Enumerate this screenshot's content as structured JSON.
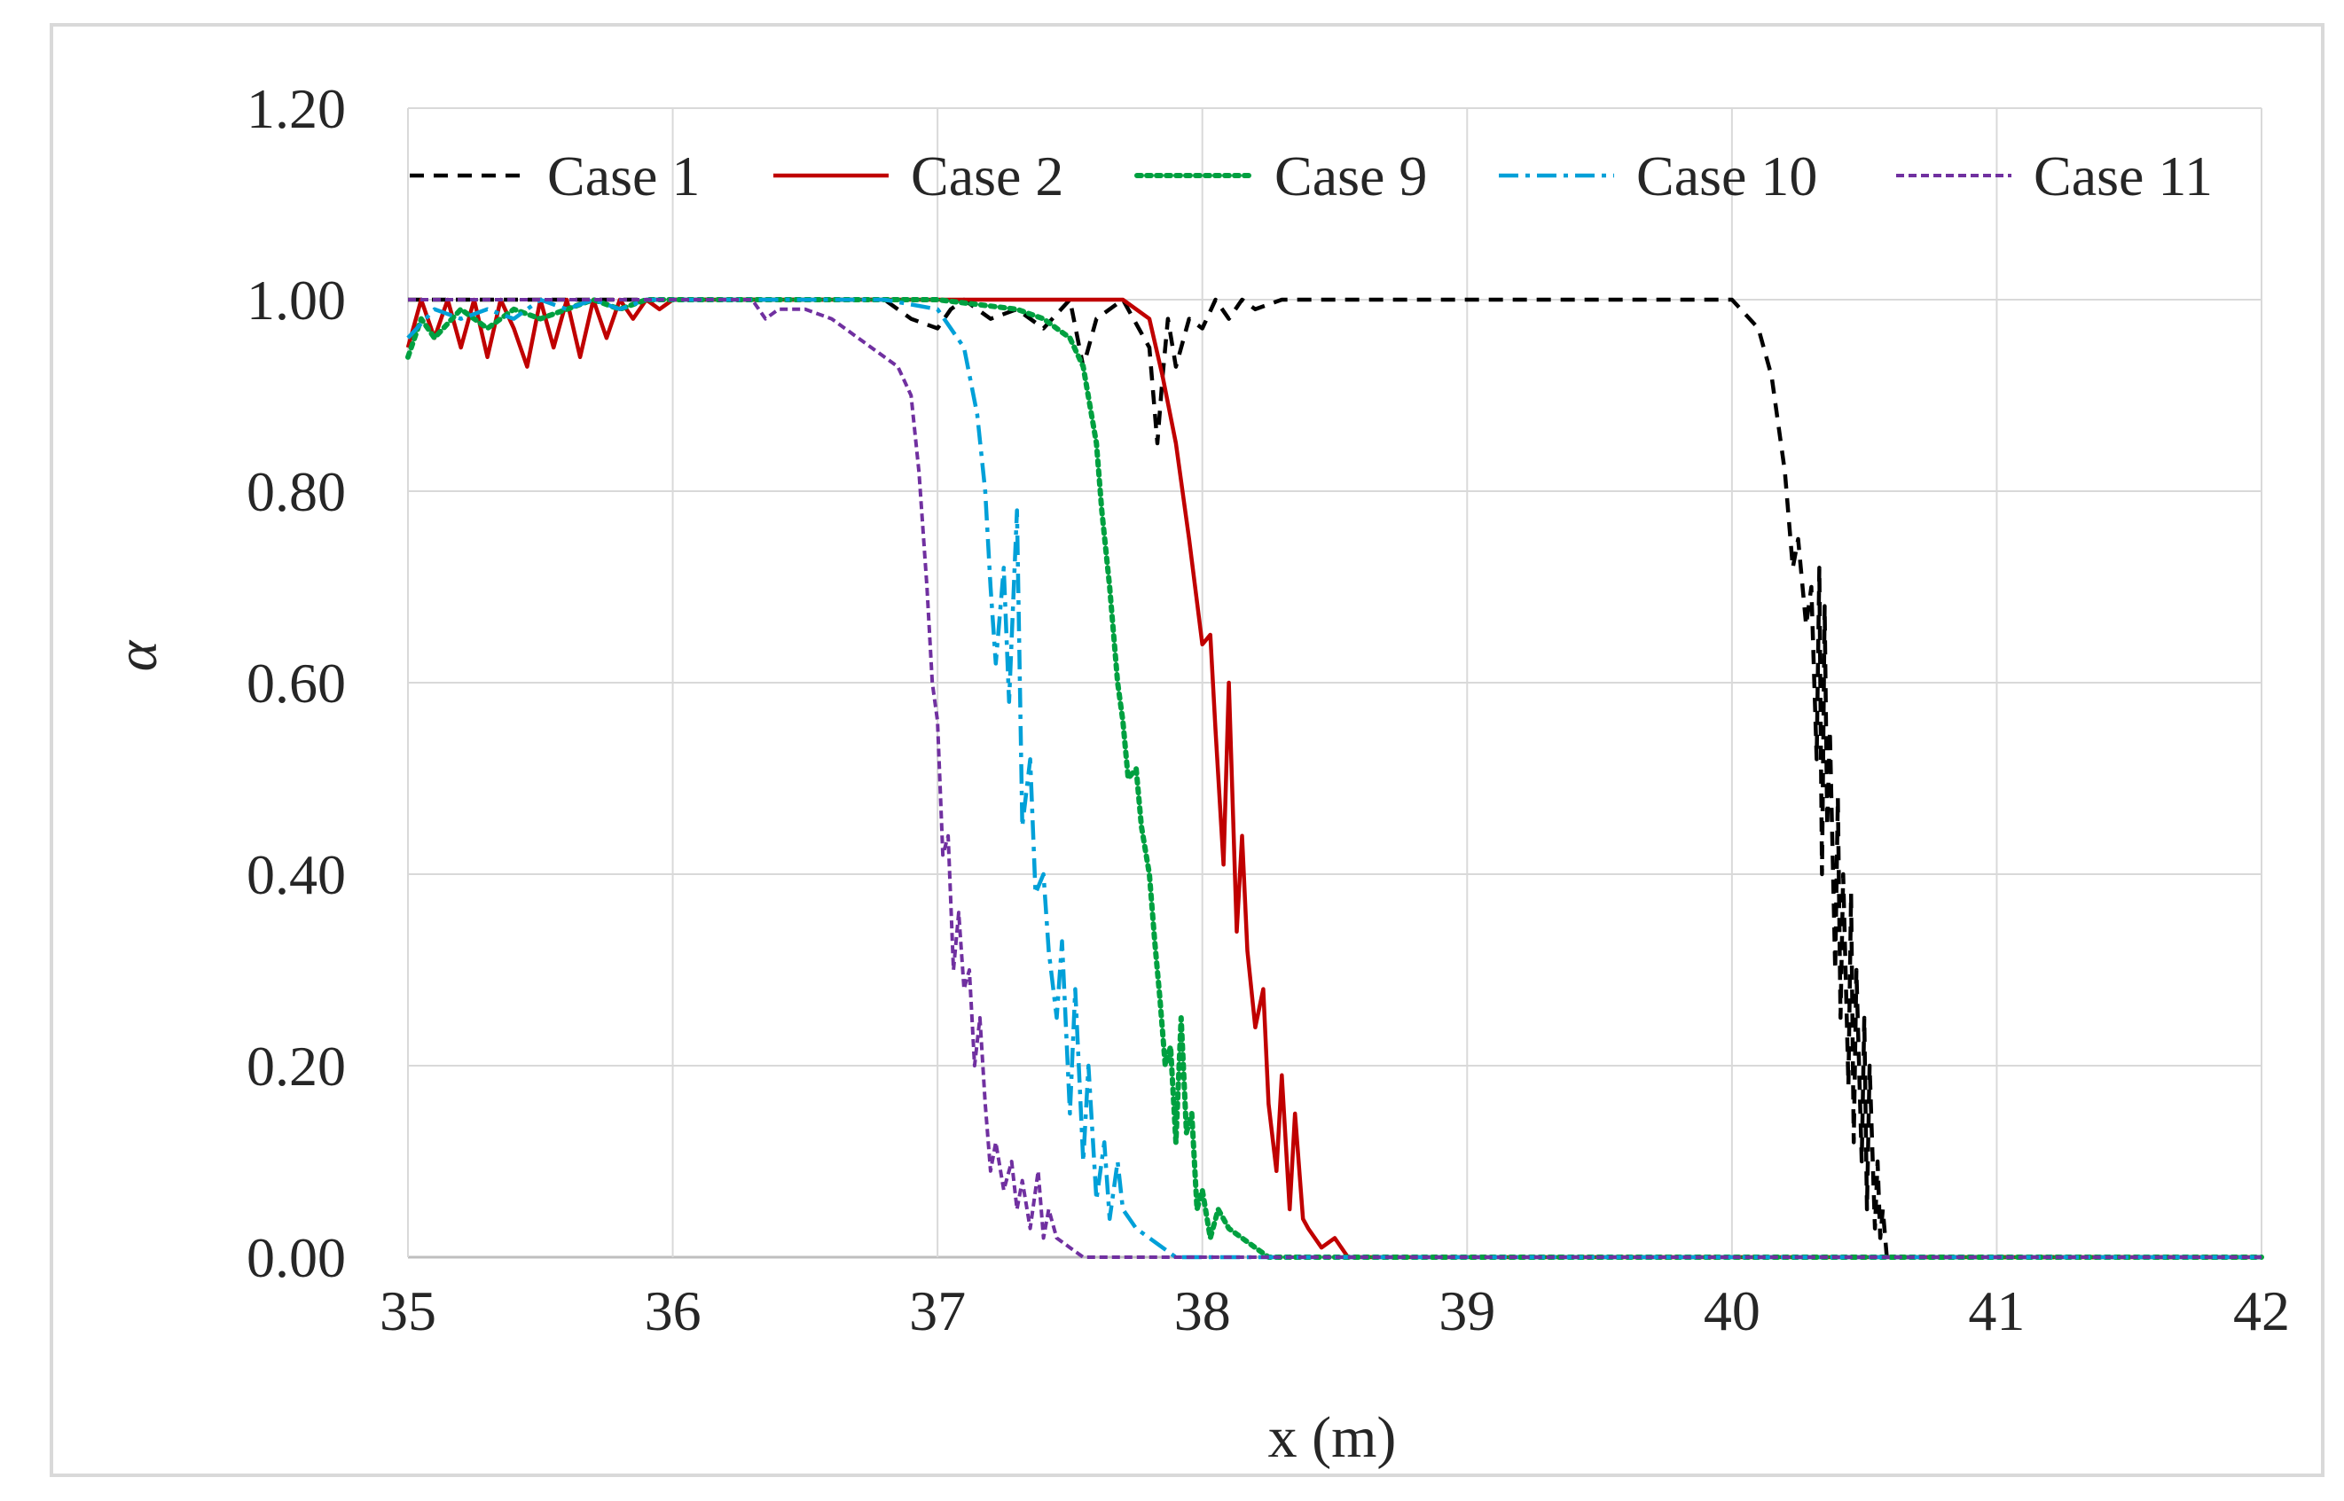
{
  "chart_data": {
    "type": "line",
    "title": "",
    "xlabel": "x (m)",
    "ylabel": "α",
    "xlim": [
      35,
      42
    ],
    "ylim": [
      0,
      1.2
    ],
    "xticks": [
      "35",
      "36",
      "37",
      "38",
      "39",
      "40",
      "41",
      "42"
    ],
    "yticks": [
      "0.00",
      "0.20",
      "0.40",
      "0.60",
      "0.80",
      "1.00",
      "1.20"
    ],
    "grid": true,
    "legend_position": "top",
    "series": [
      {
        "name": "Case 1",
        "color": "#000000",
        "style": "dashed",
        "x": [
          35.0,
          36.0,
          36.8,
          36.9,
          37.0,
          37.05,
          37.1,
          37.2,
          37.3,
          37.4,
          37.5,
          37.55,
          37.6,
          37.7,
          37.8,
          37.83,
          37.85,
          37.87,
          37.9,
          37.95,
          38.0,
          38.05,
          38.1,
          38.15,
          38.2,
          38.3,
          38.5,
          39.0,
          39.5,
          40.0,
          40.1,
          40.15,
          40.2,
          40.23,
          40.25,
          40.28,
          40.3,
          40.32,
          40.33,
          40.34,
          40.35,
          40.36,
          40.37,
          40.39,
          40.4,
          40.41,
          40.42,
          40.44,
          40.45,
          40.46,
          40.47,
          40.49,
          40.5,
          40.51,
          40.52,
          40.54,
          40.55,
          40.56,
          40.57,
          40.585,
          40.6,
          40.8,
          41.0,
          42.0
        ],
        "y": [
          1.0,
          1.0,
          1.0,
          0.98,
          0.97,
          0.99,
          1.0,
          0.98,
          0.99,
          0.97,
          1.0,
          0.93,
          0.98,
          1.0,
          0.95,
          0.85,
          0.92,
          0.98,
          0.93,
          0.98,
          0.97,
          1.0,
          0.98,
          1.0,
          0.99,
          1.0,
          1.0,
          1.0,
          1.0,
          1.0,
          0.97,
          0.92,
          0.82,
          0.72,
          0.75,
          0.66,
          0.7,
          0.52,
          0.72,
          0.4,
          0.68,
          0.45,
          0.55,
          0.3,
          0.48,
          0.25,
          0.4,
          0.18,
          0.38,
          0.12,
          0.3,
          0.1,
          0.25,
          0.05,
          0.2,
          0.03,
          0.1,
          0.02,
          0.05,
          0.0,
          0.0,
          0.0,
          0.0,
          0.0
        ]
      },
      {
        "name": "Case 2",
        "color": "#c00000",
        "style": "solid",
        "x": [
          35.0,
          35.05,
          35.1,
          35.15,
          35.2,
          35.25,
          35.3,
          35.35,
          35.4,
          35.45,
          35.5,
          35.55,
          35.6,
          35.65,
          35.7,
          35.75,
          35.8,
          35.85,
          35.9,
          35.95,
          36.0,
          37.0,
          37.5,
          37.7,
          37.8,
          37.85,
          37.9,
          37.95,
          38.0,
          38.03,
          38.05,
          38.08,
          38.1,
          38.13,
          38.15,
          38.17,
          38.2,
          38.23,
          38.25,
          38.28,
          38.3,
          38.33,
          38.35,
          38.38,
          38.4,
          38.45,
          38.5,
          38.55,
          38.6,
          39.0,
          40.0,
          42.0
        ],
        "y": [
          0.95,
          1.0,
          0.96,
          1.0,
          0.95,
          1.0,
          0.94,
          1.0,
          0.97,
          0.93,
          1.0,
          0.95,
          1.0,
          0.94,
          1.0,
          0.96,
          1.0,
          0.98,
          1.0,
          0.99,
          1.0,
          1.0,
          1.0,
          1.0,
          0.98,
          0.92,
          0.85,
          0.75,
          0.64,
          0.65,
          0.55,
          0.41,
          0.6,
          0.34,
          0.44,
          0.32,
          0.24,
          0.28,
          0.16,
          0.09,
          0.19,
          0.05,
          0.15,
          0.04,
          0.03,
          0.01,
          0.02,
          0.0,
          0.0,
          0.0,
          0.0,
          0.0
        ]
      },
      {
        "name": "Case 9",
        "color": "#00a040",
        "style": "dotted",
        "x": [
          35.0,
          35.05,
          35.1,
          35.2,
          35.3,
          35.4,
          35.5,
          35.6,
          35.7,
          35.8,
          35.9,
          36.0,
          37.0,
          37.3,
          37.4,
          37.5,
          37.55,
          37.6,
          37.62,
          37.65,
          37.68,
          37.7,
          37.72,
          37.75,
          37.77,
          37.8,
          37.82,
          37.84,
          37.86,
          37.88,
          37.9,
          37.92,
          37.94,
          37.96,
          37.98,
          38.0,
          38.03,
          38.06,
          38.1,
          38.15,
          38.2,
          38.25,
          38.3,
          39.0,
          42.0
        ],
        "y": [
          0.94,
          0.98,
          0.96,
          0.99,
          0.97,
          0.99,
          0.98,
          0.99,
          1.0,
          0.99,
          1.0,
          1.0,
          1.0,
          0.99,
          0.98,
          0.96,
          0.93,
          0.85,
          0.78,
          0.7,
          0.6,
          0.56,
          0.5,
          0.51,
          0.45,
          0.4,
          0.33,
          0.27,
          0.2,
          0.22,
          0.12,
          0.25,
          0.13,
          0.15,
          0.05,
          0.07,
          0.02,
          0.05,
          0.03,
          0.02,
          0.01,
          0.0,
          0.0,
          0.0,
          0.0
        ]
      },
      {
        "name": "Case 10",
        "color": "#00a0d8",
        "style": "dash-dot",
        "x": [
          35.0,
          35.1,
          35.2,
          35.3,
          35.4,
          35.5,
          35.6,
          35.7,
          35.8,
          35.9,
          36.0,
          36.8,
          37.0,
          37.1,
          37.15,
          37.18,
          37.2,
          37.22,
          37.25,
          37.27,
          37.3,
          37.32,
          37.35,
          37.37,
          37.4,
          37.42,
          37.45,
          37.47,
          37.5,
          37.52,
          37.55,
          37.57,
          37.6,
          37.63,
          37.65,
          37.68,
          37.7,
          37.75,
          37.8,
          37.85,
          37.9,
          38.0,
          42.0
        ],
        "y": [
          0.96,
          0.99,
          0.98,
          0.99,
          0.98,
          1.0,
          0.99,
          1.0,
          0.99,
          1.0,
          1.0,
          1.0,
          0.99,
          0.95,
          0.88,
          0.8,
          0.7,
          0.62,
          0.72,
          0.58,
          0.78,
          0.45,
          0.52,
          0.38,
          0.4,
          0.32,
          0.25,
          0.33,
          0.15,
          0.28,
          0.1,
          0.2,
          0.06,
          0.12,
          0.04,
          0.1,
          0.05,
          0.03,
          0.02,
          0.01,
          0.0,
          0.0,
          0.0
        ]
      },
      {
        "name": "Case 11",
        "color": "#7030a0",
        "style": "short-dash",
        "x": [
          35.0,
          35.5,
          36.0,
          36.3,
          36.35,
          36.4,
          36.5,
          36.6,
          36.7,
          36.8,
          36.85,
          36.9,
          36.93,
          36.96,
          36.98,
          37.0,
          37.02,
          37.04,
          37.06,
          37.08,
          37.1,
          37.12,
          37.14,
          37.16,
          37.18,
          37.2,
          37.22,
          37.25,
          37.28,
          37.3,
          37.32,
          37.35,
          37.38,
          37.4,
          37.42,
          37.45,
          37.5,
          37.55,
          37.6,
          37.7,
          38.0,
          42.0
        ],
        "y": [
          1.0,
          1.0,
          1.0,
          1.0,
          0.98,
          0.99,
          0.99,
          0.98,
          0.96,
          0.94,
          0.93,
          0.9,
          0.82,
          0.7,
          0.6,
          0.56,
          0.42,
          0.44,
          0.3,
          0.36,
          0.28,
          0.3,
          0.2,
          0.25,
          0.16,
          0.09,
          0.12,
          0.07,
          0.1,
          0.05,
          0.08,
          0.03,
          0.09,
          0.02,
          0.05,
          0.02,
          0.01,
          0.0,
          0.0,
          0.0,
          0.0,
          0.0
        ]
      }
    ]
  }
}
